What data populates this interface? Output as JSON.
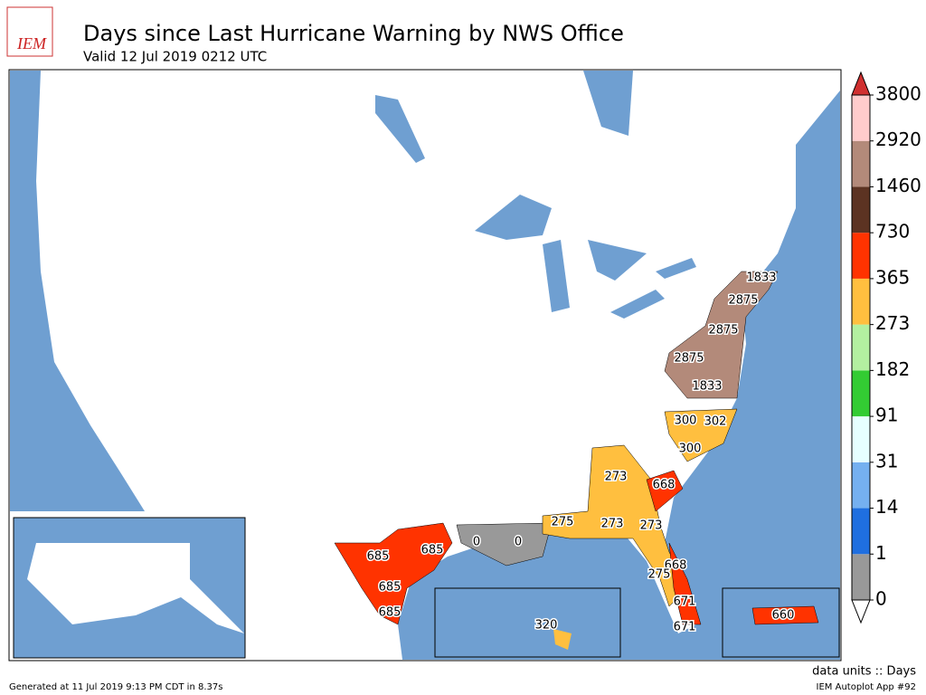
{
  "header": {
    "logo": "IEM",
    "title": "Days since Last Hurricane Warning by NWS Office",
    "subtitle": "Valid 12 Jul 2019 0212 UTC"
  },
  "legend": {
    "levels": [
      0,
      1,
      14,
      31,
      91,
      182,
      273,
      365,
      730,
      1460,
      2920,
      3800
    ],
    "colors": [
      "#999999",
      "#1f6fe0",
      "#75b0f0",
      "#e6ffff",
      "#33cc33",
      "#b3f0a0",
      "#ffbf3f",
      "#ff3300",
      "#5c3322",
      "#b38a7a",
      "#ffcccc"
    ],
    "over_color": "#d03030",
    "under_color": "#ffffff"
  },
  "map_labels": [
    "1833",
    "2875",
    "2875",
    "2875",
    "1833",
    "300",
    "302",
    "300",
    "273",
    "668",
    "275",
    "273",
    "273",
    "685",
    "685",
    "0",
    "0",
    "668",
    "275",
    "685",
    "671",
    "685",
    "320",
    "671",
    "660"
  ],
  "footer": {
    "units": "data units :: Days",
    "app": "IEM Autoplot App #92",
    "generated": "Generated at 11 Jul 2019 9:13 PM CDT in 8.37s"
  }
}
